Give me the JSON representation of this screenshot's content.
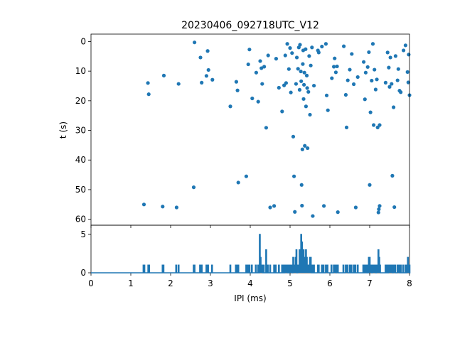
{
  "chart_data": [
    {
      "type": "scatter",
      "title": "20230406_092718UTC_V12",
      "xlabel": "",
      "ylabel": "t (s)",
      "xlim": [
        0,
        8
      ],
      "ylim": [
        62,
        -2.5
      ],
      "y_inverted": true,
      "yticks": [
        0,
        10,
        20,
        30,
        40,
        50,
        60
      ],
      "marker_color": "#1f77b4",
      "points": [
        [
          1.33,
          55.0
        ],
        [
          1.43,
          14.0
        ],
        [
          1.45,
          17.8
        ],
        [
          1.8,
          55.7
        ],
        [
          1.83,
          11.5
        ],
        [
          2.15,
          56.0
        ],
        [
          2.2,
          14.3
        ],
        [
          2.58,
          49.2
        ],
        [
          2.6,
          0.3
        ],
        [
          2.75,
          5.4
        ],
        [
          2.78,
          13.9
        ],
        [
          2.9,
          11.6
        ],
        [
          2.93,
          3.2
        ],
        [
          2.95,
          9.6
        ],
        [
          3.05,
          12.9
        ],
        [
          3.5,
          21.9
        ],
        [
          3.65,
          13.6
        ],
        [
          3.68,
          16.5
        ],
        [
          3.7,
          47.6
        ],
        [
          3.9,
          45.5
        ],
        [
          3.95,
          7.7
        ],
        [
          3.98,
          2.7
        ],
        [
          4.05,
          19.2
        ],
        [
          4.15,
          10.5
        ],
        [
          4.2,
          20.3
        ],
        [
          4.25,
          6.6
        ],
        [
          4.28,
          9.0
        ],
        [
          4.3,
          14.3
        ],
        [
          4.35,
          8.5
        ],
        [
          4.4,
          29.1
        ],
        [
          4.45,
          4.7
        ],
        [
          4.5,
          56.0
        ],
        [
          4.6,
          55.5
        ],
        [
          4.65,
          5.8
        ],
        [
          4.72,
          15.6
        ],
        [
          4.8,
          23.6
        ],
        [
          4.85,
          14.8
        ],
        [
          4.88,
          4.7
        ],
        [
          4.9,
          14.0
        ],
        [
          4.93,
          0.8
        ],
        [
          4.97,
          9.3
        ],
        [
          5.0,
          2.2
        ],
        [
          5.02,
          17.2
        ],
        [
          5.05,
          3.9
        ],
        [
          5.08,
          32.1
        ],
        [
          5.1,
          45.5
        ],
        [
          5.12,
          57.5
        ],
        [
          5.15,
          14.3
        ],
        [
          5.17,
          5.4
        ],
        [
          5.2,
          9.2
        ],
        [
          5.22,
          2.0
        ],
        [
          5.24,
          16.3
        ],
        [
          5.25,
          1.1
        ],
        [
          5.27,
          10.1
        ],
        [
          5.28,
          13.4
        ],
        [
          5.29,
          48.4
        ],
        [
          5.3,
          55.4
        ],
        [
          5.31,
          36.4
        ],
        [
          5.32,
          7.6
        ],
        [
          5.33,
          3.0
        ],
        [
          5.34,
          19.4
        ],
        [
          5.35,
          14.6
        ],
        [
          5.36,
          10.5
        ],
        [
          5.37,
          35.2
        ],
        [
          5.39,
          2.6
        ],
        [
          5.4,
          21.9
        ],
        [
          5.42,
          11.5
        ],
        [
          5.43,
          15.7
        ],
        [
          5.44,
          36.0
        ],
        [
          5.46,
          17.0
        ],
        [
          5.48,
          4.9
        ],
        [
          5.5,
          24.7
        ],
        [
          5.52,
          8.1
        ],
        [
          5.55,
          2.0
        ],
        [
          5.57,
          58.9
        ],
        [
          5.6,
          14.9
        ],
        [
          5.7,
          3.0
        ],
        [
          5.72,
          3.7
        ],
        [
          5.8,
          1.7
        ],
        [
          5.85,
          55.5
        ],
        [
          5.9,
          0.8
        ],
        [
          5.92,
          18.2
        ],
        [
          5.95,
          23.2
        ],
        [
          6.05,
          12.4
        ],
        [
          6.1,
          8.5
        ],
        [
          6.12,
          5.7
        ],
        [
          6.15,
          10.4
        ],
        [
          6.18,
          8.4
        ],
        [
          6.2,
          57.6
        ],
        [
          6.35,
          1.6
        ],
        [
          6.4,
          18.0
        ],
        [
          6.42,
          29.0
        ],
        [
          6.45,
          13.1
        ],
        [
          6.5,
          9.5
        ],
        [
          6.55,
          4.2
        ],
        [
          6.6,
          14.4
        ],
        [
          6.65,
          56.0
        ],
        [
          6.7,
          12.0
        ],
        [
          6.85,
          6.9
        ],
        [
          6.88,
          19.5
        ],
        [
          6.9,
          10.5
        ],
        [
          6.95,
          8.6
        ],
        [
          6.98,
          3.6
        ],
        [
          7.0,
          48.4
        ],
        [
          7.02,
          23.9
        ],
        [
          7.05,
          13.2
        ],
        [
          7.08,
          0.8
        ],
        [
          7.1,
          28.2
        ],
        [
          7.12,
          9.5
        ],
        [
          7.15,
          16.2
        ],
        [
          7.18,
          12.8
        ],
        [
          7.2,
          29.0
        ],
        [
          7.22,
          57.7
        ],
        [
          7.23,
          56.6
        ],
        [
          7.25,
          28.2
        ],
        [
          7.25,
          55.5
        ],
        [
          7.4,
          13.9
        ],
        [
          7.45,
          3.7
        ],
        [
          7.48,
          8.8
        ],
        [
          7.5,
          15.3
        ],
        [
          7.52,
          5.4
        ],
        [
          7.55,
          14.3
        ],
        [
          7.57,
          45.3
        ],
        [
          7.6,
          22.2
        ],
        [
          7.62,
          55.9
        ],
        [
          7.65,
          4.9
        ],
        [
          7.7,
          13.1
        ],
        [
          7.72,
          9.3
        ],
        [
          7.75,
          16.6
        ],
        [
          7.78,
          17.1
        ],
        [
          7.85,
          3.0
        ],
        [
          7.9,
          1.3
        ],
        [
          7.95,
          10.3
        ],
        [
          7.97,
          13.8
        ],
        [
          7.98,
          4.4
        ],
        [
          8.0,
          18.1
        ]
      ]
    },
    {
      "type": "line",
      "xlabel": "IPI (ms)",
      "ylabel": "",
      "xlim": [
        0,
        8
      ],
      "ylim": [
        0,
        6.2
      ],
      "xticks": [
        0,
        1,
        2,
        3,
        4,
        5,
        6,
        7,
        8
      ],
      "yticks": [
        0,
        5
      ],
      "line_color": "#1f77b4",
      "bin_width": 0.02,
      "counts": [
        [
          1.32,
          1
        ],
        [
          1.34,
          1
        ],
        [
          1.44,
          1
        ],
        [
          1.46,
          1
        ],
        [
          1.8,
          1
        ],
        [
          1.82,
          1
        ],
        [
          2.14,
          1
        ],
        [
          2.2,
          1
        ],
        [
          2.58,
          1
        ],
        [
          2.6,
          1
        ],
        [
          2.74,
          1
        ],
        [
          2.78,
          1
        ],
        [
          2.9,
          1
        ],
        [
          2.92,
          1
        ],
        [
          2.94,
          1
        ],
        [
          3.04,
          1
        ],
        [
          3.5,
          1
        ],
        [
          3.64,
          1
        ],
        [
          3.68,
          1
        ],
        [
          3.7,
          1
        ],
        [
          3.9,
          1
        ],
        [
          3.94,
          1
        ],
        [
          3.98,
          1
        ],
        [
          4.04,
          1
        ],
        [
          4.14,
          1
        ],
        [
          4.2,
          1
        ],
        [
          4.24,
          5
        ],
        [
          4.26,
          2
        ],
        [
          4.28,
          1
        ],
        [
          4.3,
          1
        ],
        [
          4.34,
          1
        ],
        [
          4.4,
          3
        ],
        [
          4.44,
          1
        ],
        [
          4.5,
          1
        ],
        [
          4.6,
          1
        ],
        [
          4.64,
          1
        ],
        [
          4.72,
          1
        ],
        [
          4.8,
          1
        ],
        [
          4.84,
          1
        ],
        [
          4.88,
          1
        ],
        [
          4.9,
          1
        ],
        [
          4.92,
          1
        ],
        [
          4.96,
          1
        ],
        [
          5.0,
          1
        ],
        [
          5.02,
          1
        ],
        [
          5.04,
          1
        ],
        [
          5.08,
          2
        ],
        [
          5.1,
          1
        ],
        [
          5.12,
          1
        ],
        [
          5.14,
          2
        ],
        [
          5.16,
          3
        ],
        [
          5.2,
          1
        ],
        [
          5.22,
          1
        ],
        [
          5.24,
          3
        ],
        [
          5.26,
          2
        ],
        [
          5.28,
          5
        ],
        [
          5.3,
          4
        ],
        [
          5.32,
          2
        ],
        [
          5.34,
          3
        ],
        [
          5.36,
          2
        ],
        [
          5.38,
          1
        ],
        [
          5.4,
          3
        ],
        [
          5.42,
          2
        ],
        [
          5.44,
          1
        ],
        [
          5.46,
          1
        ],
        [
          5.48,
          1
        ],
        [
          5.5,
          2
        ],
        [
          5.52,
          2
        ],
        [
          5.56,
          1
        ],
        [
          5.6,
          1
        ],
        [
          5.7,
          1
        ],
        [
          5.72,
          1
        ],
        [
          5.8,
          1
        ],
        [
          5.84,
          1
        ],
        [
          5.9,
          1
        ],
        [
          5.92,
          1
        ],
        [
          5.94,
          1
        ],
        [
          6.04,
          1
        ],
        [
          6.1,
          1
        ],
        [
          6.12,
          1
        ],
        [
          6.14,
          1
        ],
        [
          6.18,
          1
        ],
        [
          6.2,
          1
        ],
        [
          6.34,
          1
        ],
        [
          6.4,
          1
        ],
        [
          6.42,
          1
        ],
        [
          6.44,
          1
        ],
        [
          6.5,
          1
        ],
        [
          6.54,
          1
        ],
        [
          6.6,
          1
        ],
        [
          6.64,
          1
        ],
        [
          6.7,
          1
        ],
        [
          6.84,
          1
        ],
        [
          6.88,
          1
        ],
        [
          6.9,
          1
        ],
        [
          6.94,
          1
        ],
        [
          6.98,
          2
        ],
        [
          7.0,
          2
        ],
        [
          7.02,
          1
        ],
        [
          7.04,
          1
        ],
        [
          7.08,
          1
        ],
        [
          7.1,
          1
        ],
        [
          7.12,
          1
        ],
        [
          7.14,
          1
        ],
        [
          7.18,
          1
        ],
        [
          7.2,
          1
        ],
        [
          7.22,
          3
        ],
        [
          7.24,
          2
        ],
        [
          7.26,
          1
        ],
        [
          7.4,
          1
        ],
        [
          7.44,
          1
        ],
        [
          7.48,
          1
        ],
        [
          7.5,
          1
        ],
        [
          7.52,
          1
        ],
        [
          7.54,
          1
        ],
        [
          7.56,
          1
        ],
        [
          7.6,
          1
        ],
        [
          7.62,
          1
        ],
        [
          7.64,
          1
        ],
        [
          7.7,
          1
        ],
        [
          7.72,
          1
        ],
        [
          7.74,
          1
        ],
        [
          7.78,
          1
        ],
        [
          7.84,
          1
        ],
        [
          7.9,
          1
        ],
        [
          7.94,
          1
        ],
        [
          7.96,
          2
        ],
        [
          7.98,
          1
        ],
        [
          8.0,
          1
        ]
      ]
    }
  ]
}
